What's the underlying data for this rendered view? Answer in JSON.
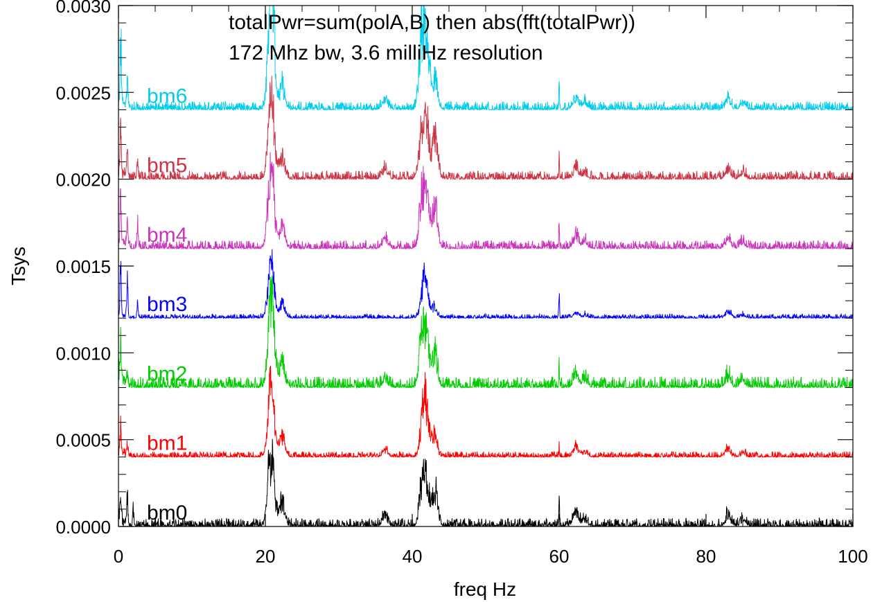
{
  "chart_data": {
    "type": "line",
    "title_lines": [
      "totalPwr=sum(polA,B) then abs(fft(totalPwr))",
      "172 Mhz bw, 3.6 milliHz resolution"
    ],
    "xlabel": "freq Hz",
    "ylabel": "Tsys",
    "xlim": [
      0,
      100
    ],
    "ylim": [
      0.0,
      0.003
    ],
    "x_ticks": [
      "0",
      "20",
      "40",
      "60",
      "80",
      "100"
    ],
    "y_ticks": [
      "0.0000",
      "0.0005",
      "0.0010",
      "0.0015",
      "0.0020",
      "0.0025",
      "0.0030"
    ],
    "grid": false,
    "legend": "inline labels near left of each trace",
    "series": [
      {
        "name": "bm0",
        "color": "#000000",
        "baseline": 0.0,
        "noise": 3e-05,
        "peaks": [
          [
            0.3,
            0.00025
          ],
          [
            1.2,
            0.00026
          ],
          [
            2.0,
            0.00012
          ],
          [
            20.6,
            0.0004
          ],
          [
            21.0,
            0.00035
          ],
          [
            22.3,
            0.0002
          ],
          [
            36.3,
            9e-05
          ],
          [
            41.3,
            0.00032
          ],
          [
            42.0,
            0.00035
          ],
          [
            43.1,
            0.00033
          ],
          [
            60.0,
            0.00025
          ],
          [
            62.3,
            0.00012
          ],
          [
            63.5,
            5e-05
          ],
          [
            83.0,
            9e-05
          ],
          [
            85.0,
            5e-05
          ]
        ]
      },
      {
        "name": "bm1",
        "color": "#ff0000",
        "baseline": 0.0004,
        "noise": 2e-05,
        "peaks": [
          [
            0.3,
            0.00025
          ],
          [
            1.2,
            0.0001
          ],
          [
            20.6,
            0.00038
          ],
          [
            21.0,
            0.00035
          ],
          [
            22.3,
            0.00018
          ],
          [
            36.3,
            5e-05
          ],
          [
            41.5,
            0.0004
          ],
          [
            42.0,
            0.00028
          ],
          [
            43.0,
            0.00018
          ],
          [
            60.0,
            0.0001
          ],
          [
            62.3,
            8e-05
          ],
          [
            63.5,
            4e-05
          ],
          [
            83.0,
            6e-05
          ],
          [
            85.0,
            3e-05
          ]
        ]
      },
      {
        "name": "bm2",
        "color": "#00cc00",
        "baseline": 0.0008,
        "noise": 4e-05,
        "peaks": [
          [
            0.3,
            0.00025
          ],
          [
            1.2,
            0.0001
          ],
          [
            20.6,
            0.00045
          ],
          [
            21.0,
            0.00045
          ],
          [
            22.3,
            0.00022
          ],
          [
            36.3,
            7e-05
          ],
          [
            41.3,
            0.0004
          ],
          [
            42.0,
            0.00038
          ],
          [
            43.1,
            0.00028
          ],
          [
            60.0,
            0.00018
          ],
          [
            62.3,
            0.0001
          ],
          [
            63.5,
            5e-05
          ],
          [
            83.0,
            8e-05
          ],
          [
            85.0,
            5e-05
          ]
        ]
      },
      {
        "name": "bm3",
        "color": "#0000ff",
        "baseline": 0.0012,
        "noise": 1.5e-05,
        "peaks": [
          [
            0.3,
            0.00035
          ],
          [
            1.2,
            0.0003
          ],
          [
            2.6,
            0.0001
          ],
          [
            20.6,
            0.00028
          ],
          [
            21.0,
            0.00022
          ],
          [
            22.3,
            0.00012
          ],
          [
            41.5,
            0.00026
          ],
          [
            42.0,
            0.00016
          ],
          [
            43.0,
            8e-05
          ],
          [
            60.0,
            0.00025
          ],
          [
            62.3,
            4e-05
          ],
          [
            63.5,
            2e-05
          ],
          [
            83.0,
            5e-05
          ],
          [
            85.0,
            2e-05
          ]
        ]
      },
      {
        "name": "bm4",
        "color": "#cc33bb",
        "baseline": 0.0016,
        "noise": 3e-05,
        "peaks": [
          [
            0.3,
            0.0004
          ],
          [
            1.2,
            0.00018
          ],
          [
            2.6,
            0.0002
          ],
          [
            20.6,
            0.0004
          ],
          [
            21.0,
            0.0004
          ],
          [
            22.3,
            0.00018
          ],
          [
            36.3,
            8e-05
          ],
          [
            41.3,
            0.0004
          ],
          [
            42.0,
            0.0004
          ],
          [
            43.1,
            0.00035
          ],
          [
            60.0,
            0.0002
          ],
          [
            62.3,
            0.0001
          ],
          [
            63.5,
            5e-05
          ],
          [
            83.0,
            8e-05
          ],
          [
            85.0,
            5e-05
          ]
        ]
      },
      {
        "name": "bm5",
        "color": "#cc3344",
        "baseline": 0.002,
        "noise": 3e-05,
        "peaks": [
          [
            0.3,
            0.00035
          ],
          [
            1.2,
            0.00025
          ],
          [
            2.6,
            0.00013
          ],
          [
            20.6,
            0.0004
          ],
          [
            21.0,
            0.0004
          ],
          [
            22.3,
            0.00018
          ],
          [
            36.3,
            8e-05
          ],
          [
            41.3,
            0.0004
          ],
          [
            42.0,
            0.0004
          ],
          [
            43.1,
            0.00035
          ],
          [
            60.0,
            0.0002
          ],
          [
            62.3,
            0.0001
          ],
          [
            63.5,
            5e-05
          ],
          [
            83.0,
            8e-05
          ],
          [
            85.0,
            5e-05
          ]
        ]
      },
      {
        "name": "bm6",
        "color": "#00ccee",
        "baseline": 0.0024,
        "noise": 3e-05,
        "peaks": [
          [
            0.3,
            0.0006
          ],
          [
            1.2,
            0.0002
          ],
          [
            20.6,
            0.0006
          ],
          [
            21.0,
            0.0006
          ],
          [
            22.3,
            0.00018
          ],
          [
            36.3,
            8e-05
          ],
          [
            41.3,
            0.0006
          ],
          [
            42.0,
            0.0006
          ],
          [
            43.1,
            0.00025
          ],
          [
            60.0,
            0.00022
          ],
          [
            62.3,
            0.0001
          ],
          [
            63.5,
            5e-05
          ],
          [
            83.0,
            8e-05
          ],
          [
            85.0,
            5e-05
          ]
        ]
      }
    ]
  }
}
